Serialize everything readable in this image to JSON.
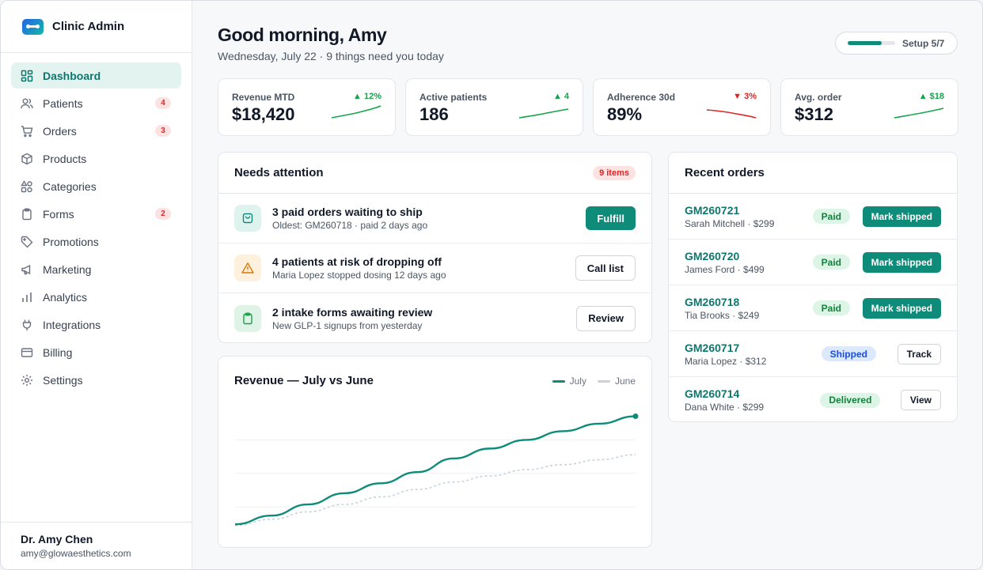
{
  "sidebar": {
    "brand": "Clinic Admin",
    "items": [
      {
        "label": "Dashboard",
        "icon": "dashboard-icon",
        "active": true,
        "badge": ""
      },
      {
        "label": "Patients",
        "icon": "users-icon",
        "badge": "4"
      },
      {
        "label": "Orders",
        "icon": "cart-icon",
        "badge": "3"
      },
      {
        "label": "Products",
        "icon": "box-icon",
        "badge": ""
      },
      {
        "label": "Categories",
        "icon": "categories-icon",
        "badge": ""
      },
      {
        "label": "Forms",
        "icon": "clipboard-icon",
        "badge": "2"
      },
      {
        "label": "Promotions",
        "icon": "tag-icon",
        "badge": ""
      },
      {
        "label": "Marketing",
        "icon": "megaphone-icon",
        "badge": ""
      },
      {
        "label": "Analytics",
        "icon": "bar-chart-icon",
        "badge": ""
      },
      {
        "label": "Integrations",
        "icon": "plug-icon",
        "badge": ""
      },
      {
        "label": "Billing",
        "icon": "credit-card-icon",
        "badge": ""
      },
      {
        "label": "Settings",
        "icon": "gear-icon",
        "badge": ""
      }
    ],
    "user": {
      "name": "Dr. Amy Chen",
      "email": "amy@glowaesthetics.com"
    }
  },
  "header": {
    "greeting": "Good morning, Amy",
    "subline": "Wednesday, July 22 · 9 things need you today",
    "setup": {
      "label": "Setup 5/7",
      "progress": 0.71
    }
  },
  "kpis": [
    {
      "label": "Revenue MTD",
      "value": "$18,420",
      "delta": "▲ 12%",
      "direction": "up",
      "color": "#16a34a"
    },
    {
      "label": "Active patients",
      "value": "186",
      "delta": "▲ 4",
      "direction": "up",
      "color": "#16a34a"
    },
    {
      "label": "Adherence 30d",
      "value": "89%",
      "delta": "▼ 3%",
      "direction": "down",
      "color": "#dc2626"
    },
    {
      "label": "Avg. order",
      "value": "$312",
      "delta": "▲ $18",
      "direction": "up",
      "color": "#16a34a"
    }
  ],
  "attention": {
    "title": "Needs attention",
    "badge": "9 items",
    "items": [
      {
        "title": "3 paid orders waiting to ship",
        "subtitle": "Oldest: GM260718 · paid 2 days ago",
        "action": "Fulfill",
        "icon": "shopping-bag-icon"
      },
      {
        "title": "4 patients at risk of dropping off",
        "subtitle": "Maria Lopez stopped dosing 12 days ago",
        "action": "Call list",
        "icon": "warning-icon"
      },
      {
        "title": "2 intake forms awaiting review",
        "subtitle": "New GLP-1 signups from yesterday",
        "action": "Review",
        "icon": "clipboard-icon"
      }
    ]
  },
  "revenue_chart": {
    "title": "Revenue — July vs June",
    "legend": [
      "July",
      "June"
    ]
  },
  "chart_data": {
    "type": "line",
    "title": "Revenue — July vs June",
    "x": [
      1,
      2,
      3,
      4,
      5,
      6,
      7,
      8,
      9,
      10,
      11,
      12
    ],
    "series": [
      {
        "name": "July",
        "color": "#0f8b7a",
        "values": [
          5,
          12,
          21,
          30,
          38,
          47,
          58,
          66,
          73,
          80,
          86,
          92
        ]
      },
      {
        "name": "June",
        "color": "#c7d2dc",
        "values": [
          4,
          9,
          15,
          21,
          27,
          33,
          39,
          44,
          49,
          53,
          57,
          61
        ]
      }
    ],
    "ylim": [
      0,
      100
    ],
    "grid": true,
    "legend_position": "top-right"
  },
  "orders": {
    "title": "Recent orders",
    "rows": [
      {
        "id": "GM260721",
        "customer": "Sarah Mitchell · $299",
        "status": "Paid",
        "status_type": "paid",
        "action": "Mark shipped",
        "action_type": "primary"
      },
      {
        "id": "GM260720",
        "customer": "James Ford · $499",
        "status": "Paid",
        "status_type": "paid",
        "action": "Mark shipped",
        "action_type": "primary"
      },
      {
        "id": "GM260718",
        "customer": "Tia Brooks · $249",
        "status": "Paid",
        "status_type": "paid",
        "action": "Mark shipped",
        "action_type": "primary"
      },
      {
        "id": "GM260717",
        "customer": "Maria Lopez · $312",
        "status": "Shipped",
        "status_type": "shipped",
        "action": "Track",
        "action_type": "outline"
      },
      {
        "id": "GM260714",
        "customer": "Dana White · $299",
        "status": "Delivered",
        "status_type": "delivered",
        "action": "View",
        "action_type": "outline"
      }
    ]
  }
}
